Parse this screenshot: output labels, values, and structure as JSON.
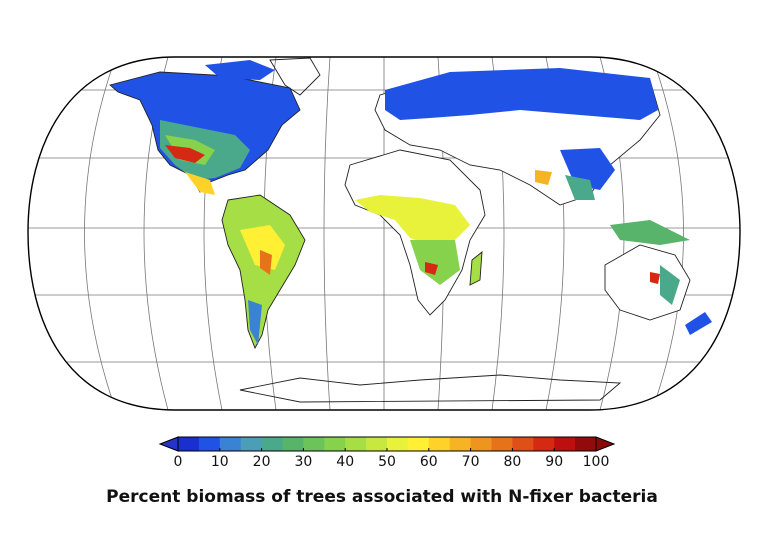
{
  "colorbar": {
    "range": [
      0,
      100
    ],
    "ticks": [
      0,
      10,
      20,
      30,
      40,
      50,
      60,
      70,
      80,
      90,
      100
    ],
    "colors": [
      "#1a2fd0",
      "#2052e6",
      "#3a82d4",
      "#4b9db8",
      "#4aa98a",
      "#58b46a",
      "#6cc35a",
      "#86d24c",
      "#a6de46",
      "#c8e840",
      "#e8f23a",
      "#fff034",
      "#ffd22a",
      "#f6b324",
      "#ee951f",
      "#e6731a",
      "#df4f18",
      "#d62913",
      "#bd0f10",
      "#930a0a"
    ],
    "under_color": "#2433c8",
    "over_color": "#8a0a0a",
    "label": "Percent biomass of trees associated with N-fixer bacteria"
  }
}
